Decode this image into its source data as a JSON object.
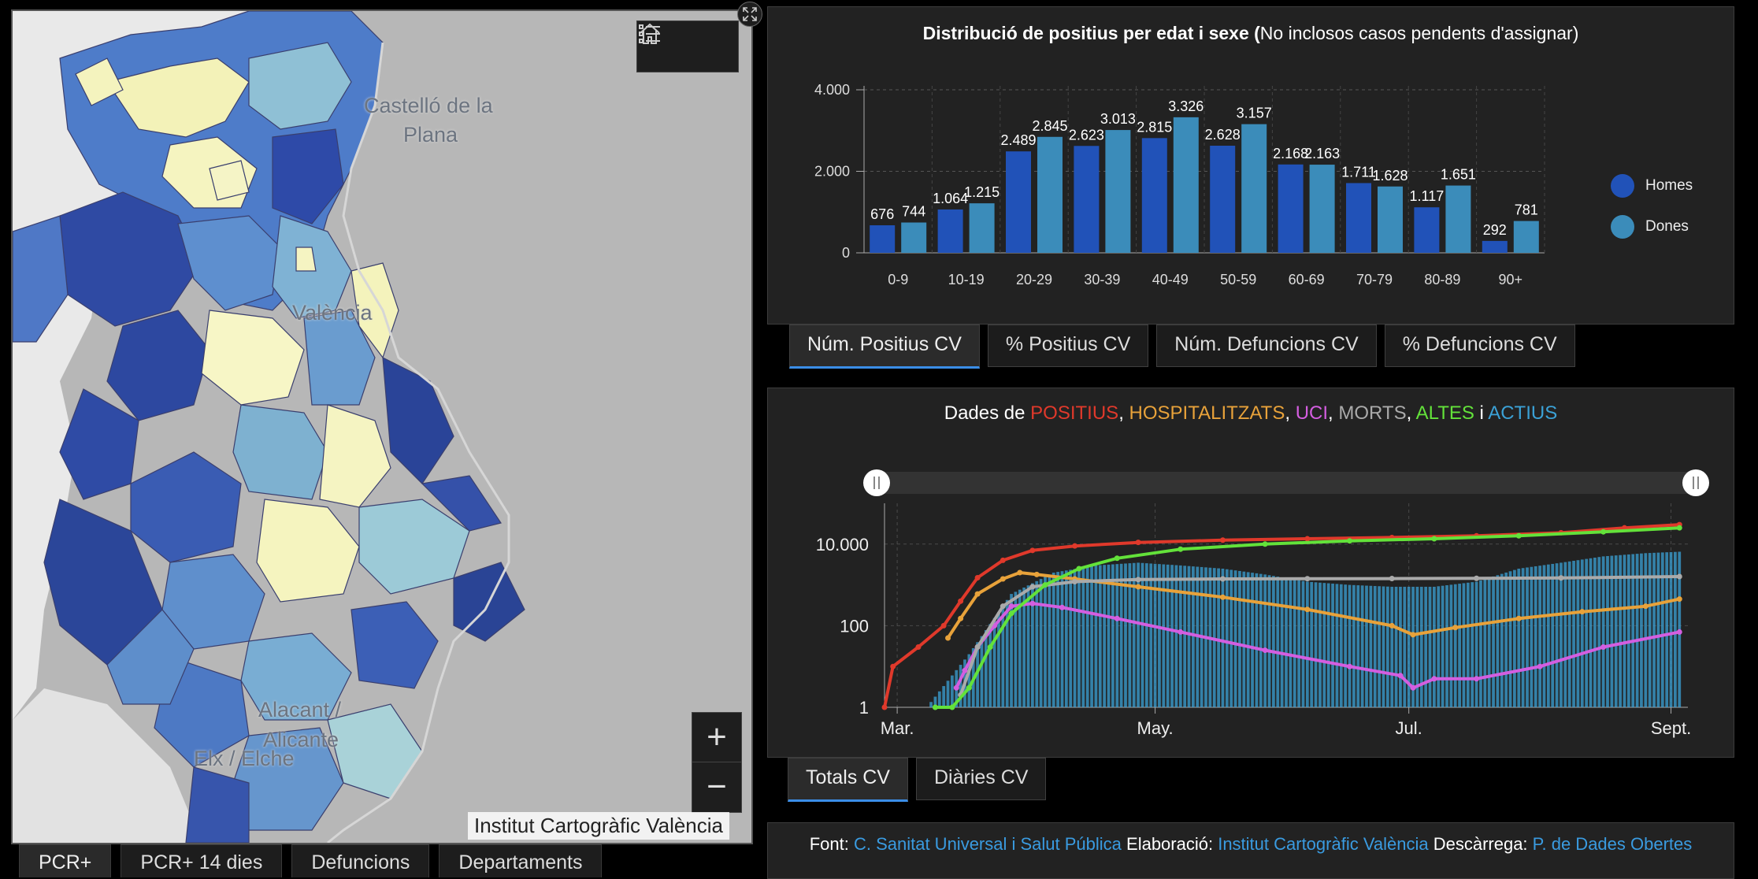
{
  "map": {
    "labels": [
      "Castelló de la",
      "Plana",
      "València",
      "Alacant /",
      "Alicante",
      "Elx / Elche"
    ],
    "attribution": "Institut Cartogràfic València",
    "zoom_in_label": "+",
    "zoom_out_label": "−",
    "tabs": [
      {
        "label": "PCR+",
        "active": true
      },
      {
        "label": "PCR+ 14 dies",
        "active": false
      },
      {
        "label": "Defuncions",
        "active": false
      },
      {
        "label": "Departaments",
        "active": false
      }
    ]
  },
  "age_panel": {
    "title_bold": "Distribució de positius per edat i sexe (",
    "title_rest": "No inclosos casos pendents d'assignar)",
    "legend": [
      {
        "label": "Homes",
        "color": "#2152b8"
      },
      {
        "label": "Dones",
        "color": "#3b8cba"
      }
    ],
    "tabs": [
      {
        "label": "Núm. Positius CV",
        "active": true
      },
      {
        "label": "% Positius CV",
        "active": false
      },
      {
        "label": "Núm. Defuncions CV",
        "active": false
      },
      {
        "label": "% Defuncions CV",
        "active": false
      }
    ]
  },
  "trend_panel": {
    "title_prefix": "Dades de ",
    "title_parts": [
      {
        "text": "POSITIUS",
        "cls": "c-pos"
      },
      {
        "text": ", ",
        "cls": ""
      },
      {
        "text": "HOSPITALITZATS",
        "cls": "c-hosp"
      },
      {
        "text": ", ",
        "cls": ""
      },
      {
        "text": "UCI",
        "cls": "c-uci"
      },
      {
        "text": ", ",
        "cls": ""
      },
      {
        "text": "MORTS",
        "cls": "c-mort"
      },
      {
        "text": ", ",
        "cls": ""
      },
      {
        "text": "ALTES",
        "cls": "c-alt"
      },
      {
        "text": " i ",
        "cls": ""
      },
      {
        "text": "ACTIUS",
        "cls": "c-act"
      }
    ],
    "tabs": [
      {
        "label": "Totals CV",
        "active": true
      },
      {
        "label": "Diàries CV",
        "active": false
      }
    ]
  },
  "footer": {
    "font_label": "Font: ",
    "font_link": "C. Sanitat Universal i Salut Pública",
    "elab_label": " Elaboració: ",
    "elab_link": "Institut Cartogràfic València",
    "desc_label": " Descàrrega: ",
    "desc_link": "P. de Dades Obertes"
  },
  "chart_data": [
    {
      "type": "bar",
      "categories": [
        "0-9",
        "10-19",
        "20-29",
        "30-39",
        "40-49",
        "50-59",
        "60-69",
        "70-79",
        "80-89",
        "90+"
      ],
      "series": [
        {
          "name": "Homes",
          "values": [
            676,
            1064,
            2489,
            2623,
            2815,
            2628,
            2168,
            1711,
            1117,
            292
          ],
          "labels": [
            "676",
            "1.064",
            "2.489",
            "2.623",
            "2.815",
            "2.628",
            "2.168",
            "1.711",
            "1.117",
            "292"
          ],
          "color": "#2152b8"
        },
        {
          "name": "Dones",
          "values": [
            744,
            1215,
            2845,
            3013,
            3326,
            3157,
            2163,
            1628,
            1651,
            781
          ],
          "labels": [
            "744",
            "1.215",
            "2.845",
            "3.013",
            "3.326",
            "3.157",
            "2.163",
            "1.628",
            "1.651",
            "781"
          ],
          "color": "#3b8cba"
        }
      ],
      "yticks": [
        "0",
        "2.000",
        "4.000"
      ],
      "ylim": [
        0,
        4000
      ],
      "legend": "right",
      "grid": true
    },
    {
      "type": "line",
      "yscale": "log",
      "yticks": [
        {
          "value": 1,
          "label": "1"
        },
        {
          "value": 100,
          "label": "100"
        },
        {
          "value": 10000,
          "label": "10.000"
        }
      ],
      "ylim": [
        1,
        100000
      ],
      "xticks": [
        {
          "label": "Mar.",
          "x": 3
        },
        {
          "label": "May.",
          "x": 64
        },
        {
          "label": "Jul.",
          "x": 124
        },
        {
          "label": "Sept.",
          "x": 186
        }
      ],
      "xlim": [
        0,
        190
      ],
      "series": [
        {
          "name": "POSITIUS",
          "color": "#e0392b",
          "x": [
            0,
            2,
            8,
            14,
            18,
            22,
            28,
            35,
            45,
            60,
            80,
            100,
            120,
            140,
            160,
            175,
            188
          ],
          "y": [
            1,
            10,
            30,
            100,
            400,
            1500,
            4000,
            7000,
            9000,
            11000,
            12500,
            13500,
            14500,
            16000,
            19000,
            25000,
            30000
          ]
        },
        {
          "name": "HOSPITALITZATS",
          "color": "#e8a23a",
          "x": [
            15,
            18,
            22,
            28,
            32,
            36,
            45,
            60,
            80,
            100,
            120,
            125,
            135,
            150,
            165,
            180,
            188
          ],
          "y": [
            50,
            150,
            600,
            1400,
            2000,
            1800,
            1400,
            900,
            500,
            250,
            100,
            60,
            90,
            150,
            220,
            300,
            450
          ]
        },
        {
          "name": "UCI",
          "color": "#d45ee0",
          "x": [
            17,
            19,
            22,
            26,
            30,
            35,
            42,
            55,
            70,
            90,
            110,
            122,
            125,
            130,
            140,
            155,
            170,
            188
          ],
          "y": [
            3,
            8,
            30,
            100,
            300,
            350,
            280,
            150,
            70,
            25,
            10,
            6,
            3,
            5,
            5,
            10,
            30,
            70
          ]
        },
        {
          "name": "MORTS",
          "color": "#aaaaaa",
          "x": [
            18,
            22,
            28,
            35,
            45,
            60,
            80,
            100,
            120,
            140,
            160,
            188
          ],
          "y": [
            2,
            30,
            300,
            900,
            1200,
            1350,
            1400,
            1420,
            1430,
            1450,
            1480,
            1600
          ]
        },
        {
          "name": "ALTES",
          "color": "#63e23a",
          "x": [
            12,
            16,
            20,
            25,
            30,
            38,
            46,
            55,
            70,
            90,
            110,
            130,
            150,
            170,
            188
          ],
          "y": [
            1,
            1,
            3,
            30,
            200,
            1000,
            2500,
            4500,
            7500,
            10000,
            12000,
            13500,
            16000,
            20000,
            25000
          ]
        }
      ],
      "bars": {
        "name": "ACTIUS",
        "color": "#3ba1d6",
        "x": [
          10,
          20,
          30,
          40,
          50,
          60,
          70,
          80,
          90,
          100,
          110,
          120,
          130,
          140,
          150,
          160,
          170,
          180,
          188
        ],
        "y": [
          1,
          20,
          600,
          2000,
          3000,
          3500,
          3000,
          2500,
          1800,
          1200,
          1000,
          900,
          900,
          1200,
          2500,
          3500,
          5000,
          6000,
          6500
        ]
      }
    }
  ]
}
